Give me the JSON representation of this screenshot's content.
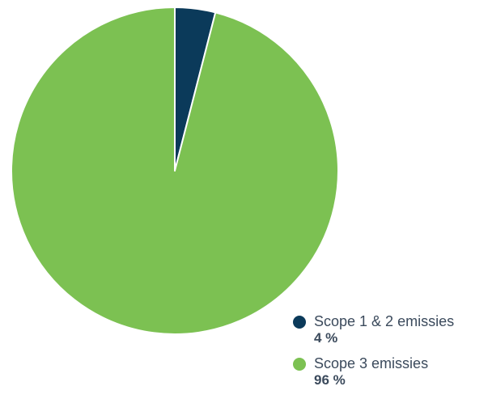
{
  "chart_data": {
    "type": "pie",
    "title": "",
    "slices": [
      {
        "label": "Scope 1 & 2 emissies",
        "value": 4,
        "display": "4 %",
        "color": "#0b3a5a"
      },
      {
        "label": "Scope 3 emissies",
        "value": 96,
        "display": "96 %",
        "color": "#7cc152"
      }
    ],
    "legend_position": "bottom-right"
  }
}
